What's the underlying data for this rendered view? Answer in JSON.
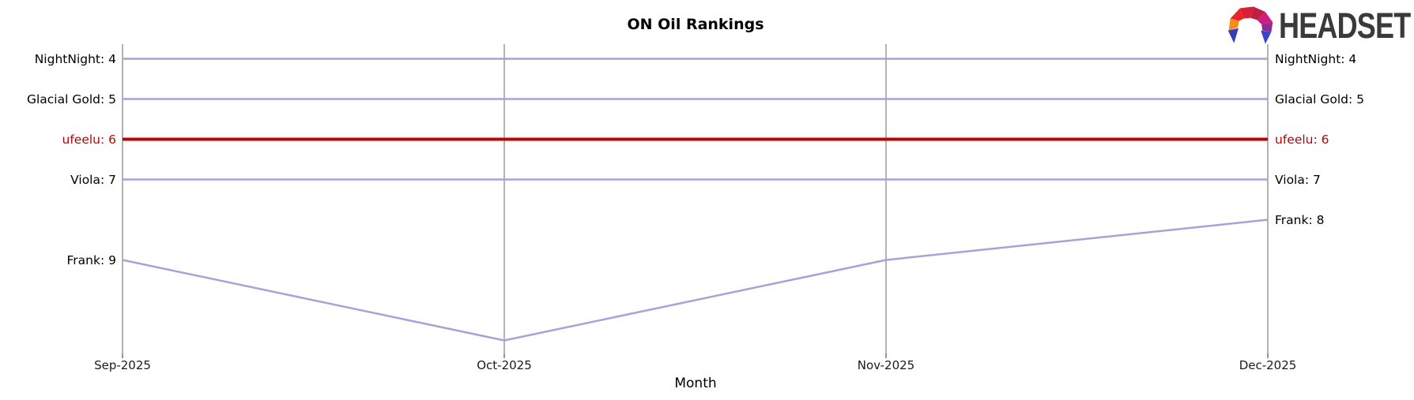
{
  "header": {
    "title": "ON Oil Rankings",
    "logo_text": "HEADSET"
  },
  "chart_data": {
    "type": "line",
    "subtype": "rank-bump-chart",
    "title": "ON Oil Rankings",
    "xlabel": "Month",
    "categories": [
      "Sep-2025",
      "Oct-2025",
      "Nov-2025",
      "Dec-2025"
    ],
    "y_axis": {
      "kind": "rank",
      "inverted": true,
      "top_visible_rank": 4,
      "bottom_visible_rank": 11,
      "tick_labels": "none"
    },
    "grid": {
      "vertical": true,
      "horizontal": false
    },
    "legend": "inline start/end labels",
    "series": [
      {
        "name": "NightNight",
        "values": [
          4,
          4,
          4,
          4
        ],
        "start_label": "NightNight: 4",
        "end_label": "NightNight: 4",
        "highlight": false
      },
      {
        "name": "Glacial Gold",
        "values": [
          5,
          5,
          5,
          5
        ],
        "start_label": "Glacial Gold: 5",
        "end_label": "Glacial Gold: 5",
        "highlight": false
      },
      {
        "name": "ufeelu",
        "values": [
          6,
          6,
          6,
          6
        ],
        "start_label": "ufeelu: 6",
        "end_label": "ufeelu: 6",
        "highlight": true
      },
      {
        "name": "Viola",
        "values": [
          7,
          7,
          7,
          7
        ],
        "start_label": "Viola: 7",
        "end_label": "Viola: 7",
        "highlight": false
      },
      {
        "name": "Frank",
        "values": [
          9,
          11,
          9,
          8
        ],
        "start_label": "Frank: 9",
        "end_label": "Frank: 8",
        "highlight": false
      }
    ],
    "colors": {
      "series_default": "#a8a2d8",
      "series_highlight": "#c00000",
      "gridline": "#b3b3b3",
      "tick_mark": "#757575",
      "label_text": "#000000",
      "highlight_label_text": "#c00000"
    }
  }
}
